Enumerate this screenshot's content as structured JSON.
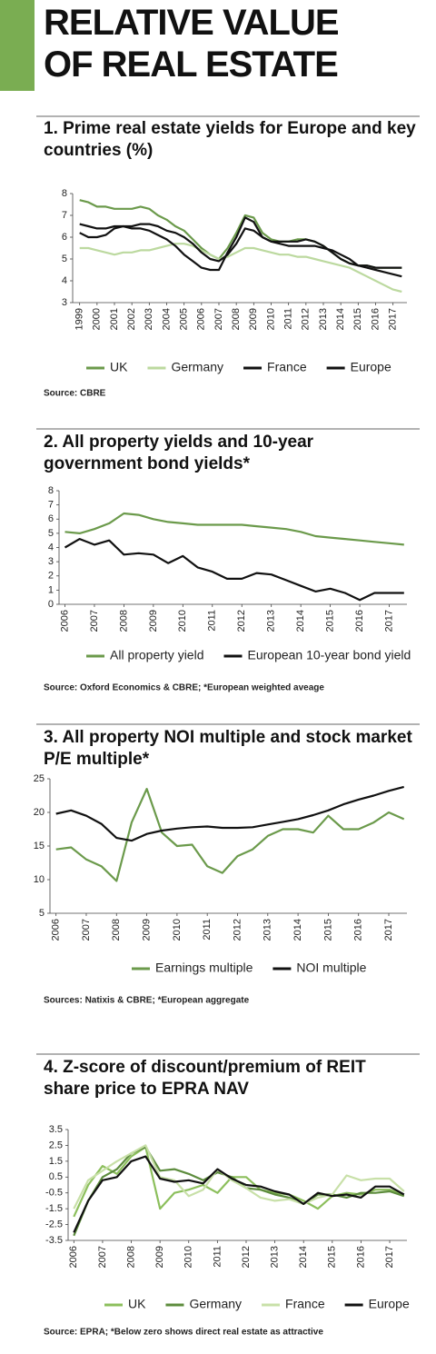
{
  "header": {
    "title": [
      "RELATIVE VALUE",
      "OF REAL ESTATE"
    ]
  },
  "chart_data": [
    {
      "type": "line",
      "title": "1. Prime real estate yields for Europe and key countries (%)",
      "source": "Source: CBRE",
      "x": [
        1999,
        1999.5,
        2000,
        2000.5,
        2001,
        2001.5,
        2002,
        2002.5,
        2003,
        2003.5,
        2004,
        2004.5,
        2005,
        2005.5,
        2006,
        2006.5,
        2007,
        2007.5,
        2008,
        2008.5,
        2009,
        2009.5,
        2010,
        2010.5,
        2011,
        2011.5,
        2012,
        2012.5,
        2013,
        2013.5,
        2014,
        2014.5,
        2015,
        2015.5,
        2016,
        2016.5,
        2017,
        2017.5
      ],
      "xlim": [
        1998.6,
        2017.8
      ],
      "xticks": [
        1999,
        2000,
        2001,
        2002,
        2003,
        2004,
        2005,
        2006,
        2007,
        2008,
        2009,
        2010,
        2011,
        2012,
        2013,
        2014,
        2015,
        2016,
        2017
      ],
      "ylim": [
        3,
        8
      ],
      "yticks": [
        3,
        4,
        5,
        6,
        7,
        8
      ],
      "series": [
        {
          "name": "UK",
          "color": "#6b9a4b",
          "values": [
            7.7,
            7.6,
            7.4,
            7.4,
            7.3,
            7.3,
            7.3,
            7.4,
            7.3,
            7.0,
            6.8,
            6.5,
            6.3,
            5.9,
            5.5,
            5.2,
            5.0,
            5.5,
            6.2,
            7.0,
            6.9,
            6.2,
            5.9,
            5.8,
            5.8,
            5.9,
            5.9,
            5.8,
            5.6,
            5.3,
            5.0,
            4.8,
            4.7,
            4.7,
            4.6,
            4.6,
            4.6,
            4.6
          ]
        },
        {
          "name": "Germany",
          "color": "#bcd99f",
          "values": [
            5.5,
            5.5,
            5.4,
            5.3,
            5.2,
            5.3,
            5.3,
            5.4,
            5.4,
            5.5,
            5.6,
            5.7,
            5.7,
            5.6,
            5.4,
            5.2,
            5.0,
            5.1,
            5.3,
            5.5,
            5.5,
            5.4,
            5.3,
            5.2,
            5.2,
            5.1,
            5.1,
            5.0,
            4.9,
            4.8,
            4.7,
            4.6,
            4.4,
            4.2,
            4.0,
            3.8,
            3.6,
            3.5
          ]
        },
        {
          "name": "France",
          "color": "#111111",
          "values": [
            6.6,
            6.5,
            6.4,
            6.4,
            6.5,
            6.5,
            6.5,
            6.6,
            6.6,
            6.5,
            6.3,
            6.2,
            6.0,
            5.7,
            5.3,
            5.0,
            4.9,
            5.2,
            5.7,
            6.4,
            6.3,
            6.0,
            5.8,
            5.7,
            5.6,
            5.6,
            5.6,
            5.6,
            5.5,
            5.4,
            5.2,
            5.0,
            4.7,
            4.6,
            4.5,
            4.4,
            4.3,
            4.2
          ]
        },
        {
          "name": "Europe",
          "color": "#111111",
          "values": [
            6.2,
            6.0,
            6.0,
            6.1,
            6.4,
            6.5,
            6.4,
            6.4,
            6.3,
            6.1,
            5.9,
            5.6,
            5.2,
            4.9,
            4.6,
            4.5,
            4.5,
            5.3,
            6.0,
            6.9,
            6.7,
            6.0,
            5.8,
            5.8,
            5.8,
            5.8,
            5.9,
            5.8,
            5.6,
            5.3,
            5.0,
            4.8,
            4.7,
            4.7,
            4.6,
            4.6,
            4.6,
            4.6
          ]
        }
      ]
    },
    {
      "type": "line",
      "title": "2. All property yields and 10-year government bond yields*",
      "source": "Source: Oxford Economics & CBRE; *European weighted aveage",
      "x": [
        2006,
        2006.5,
        2007,
        2007.5,
        2008,
        2008.5,
        2009,
        2009.5,
        2010,
        2010.5,
        2011,
        2011.5,
        2012,
        2012.5,
        2013,
        2013.5,
        2014,
        2014.5,
        2015,
        2015.5,
        2016,
        2016.5,
        2017,
        2017.5
      ],
      "xlim": [
        2005.8,
        2017.6
      ],
      "xticks": [
        2006,
        2007,
        2008,
        2009,
        2010,
        2011,
        2012,
        2013,
        2014,
        2015,
        2016,
        2017
      ],
      "ylim": [
        0,
        8
      ],
      "yticks": [
        0,
        1,
        2,
        3,
        4,
        5,
        6,
        7,
        8
      ],
      "series": [
        {
          "name": "All property yield",
          "color": "#6b9a4b",
          "values": [
            5.1,
            5.0,
            5.3,
            5.7,
            6.4,
            6.3,
            6.0,
            5.8,
            5.7,
            5.6,
            5.6,
            5.6,
            5.6,
            5.5,
            5.4,
            5.3,
            5.1,
            4.8,
            4.7,
            4.6,
            4.5,
            4.4,
            4.3,
            4.2
          ]
        },
        {
          "name": "European 10-year bond yield",
          "color": "#111111",
          "values": [
            4.0,
            4.6,
            4.2,
            4.5,
            3.5,
            3.6,
            3.5,
            2.9,
            3.4,
            2.6,
            2.3,
            1.8,
            1.8,
            2.2,
            2.1,
            1.7,
            1.3,
            0.9,
            1.1,
            0.8,
            0.3,
            0.8,
            0.8,
            0.8
          ]
        }
      ]
    },
    {
      "type": "line",
      "title": "3. All property NOI multiple and stock market P/E multiple*",
      "source": "Sources: Natixis & CBRE; *European aggregate",
      "x": [
        2006,
        2006.5,
        2007,
        2007.5,
        2008,
        2008.5,
        2009,
        2009.5,
        2010,
        2010.5,
        2011,
        2011.5,
        2012,
        2012.5,
        2013,
        2013.5,
        2014,
        2014.5,
        2015,
        2015.5,
        2016,
        2016.5,
        2017,
        2017.5
      ],
      "xlim": [
        2005.8,
        2017.6
      ],
      "xticks": [
        2006,
        2007,
        2008,
        2009,
        2010,
        2011,
        2012,
        2013,
        2014,
        2015,
        2016,
        2017
      ],
      "ylim": [
        5,
        25
      ],
      "yticks": [
        5,
        10,
        15,
        20,
        25
      ],
      "series": [
        {
          "name": "Earnings multiple",
          "color": "#6b9a4b",
          "values": [
            14.5,
            14.8,
            13.0,
            12.0,
            9.8,
            18.5,
            23.5,
            17.0,
            15.0,
            15.2,
            12.0,
            11.0,
            13.5,
            14.5,
            16.5,
            17.5,
            17.5,
            17.0,
            19.5,
            17.5,
            17.5,
            18.5,
            20.0,
            19.0
          ]
        },
        {
          "name": "NOI multiple",
          "color": "#111111",
          "values": [
            19.8,
            20.3,
            19.5,
            18.3,
            16.2,
            15.8,
            16.8,
            17.3,
            17.6,
            17.8,
            17.9,
            17.7,
            17.7,
            17.8,
            18.2,
            18.6,
            19.0,
            19.6,
            20.3,
            21.2,
            21.9,
            22.5,
            23.2,
            23.8
          ]
        }
      ]
    },
    {
      "type": "line",
      "title": "4. Z-score of discount/premium of REIT share price to EPRA NAV",
      "source": "Source: EPRA; *Below zero shows direct real estate as attractive",
      "x": [
        2006,
        2006.5,
        2007,
        2007.5,
        2008,
        2008.5,
        2009,
        2009.5,
        2010,
        2010.5,
        2011,
        2011.5,
        2012,
        2012.5,
        2013,
        2013.5,
        2014,
        2014.5,
        2015,
        2015.5,
        2016,
        2016.5,
        2017,
        2017.5
      ],
      "xlim": [
        2005.8,
        2017.6
      ],
      "xticks": [
        2006,
        2007,
        2008,
        2009,
        2010,
        2011,
        2012,
        2013,
        2014,
        2015,
        2016,
        2017
      ],
      "ylim": [
        -3.5,
        3.5
      ],
      "yticks": [
        -3.5,
        -2.5,
        -1.5,
        -0.5,
        0.5,
        1.5,
        2.5,
        3.5
      ],
      "series": [
        {
          "name": "UK",
          "color": "#8cbf5c",
          "values": [
            -2,
            0,
            1.2,
            0.7,
            1.8,
            2.4,
            -1.5,
            -0.5,
            -0.3,
            0,
            -0.5,
            0.5,
            0.5,
            -0.3,
            -0.5,
            -0.6,
            -1.0,
            -1.5,
            -0.7,
            -0.5,
            -0.6,
            -0.3,
            -0.3,
            -0.6
          ]
        },
        {
          "name": "Germany",
          "color": "#5d8c3d",
          "values": [
            -3.2,
            -1.0,
            0.5,
            1.0,
            2.0,
            2.4,
            0.9,
            1.0,
            0.7,
            0.3,
            0.8,
            0.5,
            -0.2,
            -0.3,
            -0.6,
            -0.8,
            -1.2,
            -0.6,
            -0.6,
            -0.8,
            -0.5,
            -0.5,
            -0.4,
            -0.7
          ]
        },
        {
          "name": "France",
          "color": "#c8e0a8",
          "values": [
            -1.5,
            0.3,
            0.9,
            1.5,
            2.0,
            2.5,
            0.5,
            0.3,
            -0.7,
            -0.3,
            1.0,
            0.3,
            -0.2,
            -0.8,
            -1.0,
            -0.9,
            -1.2,
            -0.8,
            -0.6,
            0.6,
            0.3,
            0.4,
            0.4,
            -0.4
          ]
        },
        {
          "name": "Europe",
          "color": "#111111",
          "values": [
            -3.0,
            -1.0,
            0.3,
            0.5,
            1.5,
            1.8,
            0.4,
            0.2,
            0.3,
            0.1,
            1.0,
            0.4,
            0.0,
            -0.1,
            -0.4,
            -0.6,
            -1.2,
            -0.5,
            -0.7,
            -0.6,
            -0.8,
            -0.1,
            -0.1,
            -0.6
          ]
        }
      ]
    }
  ]
}
